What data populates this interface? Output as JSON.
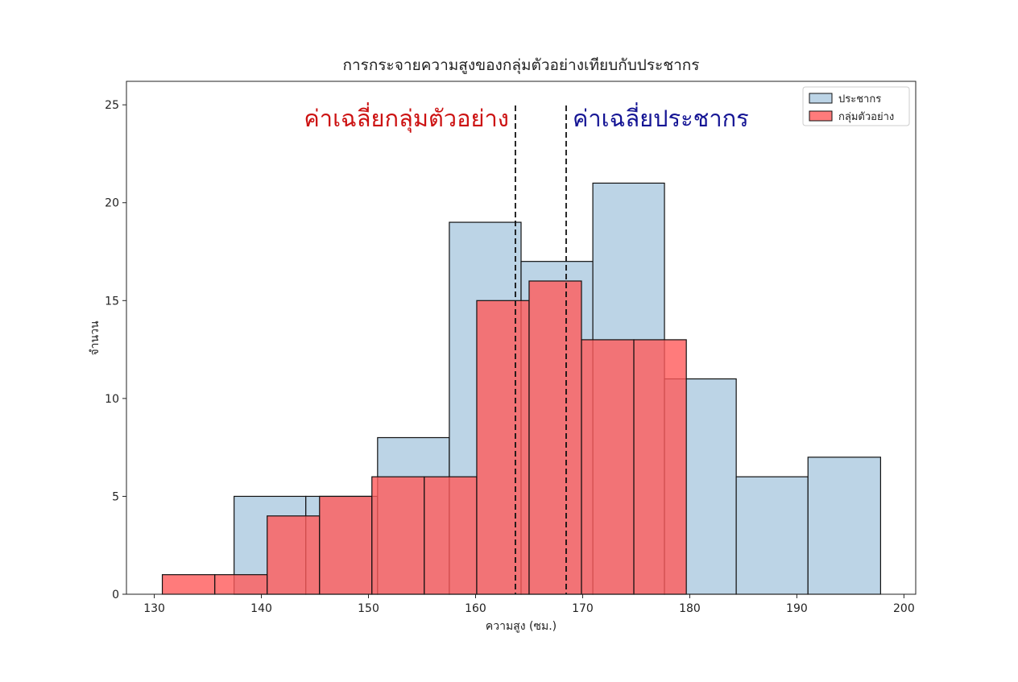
{
  "chart_data": {
    "type": "histogram",
    "title": "การกระจายความสูงของกลุ่มตัวอย่างเทียบกับประชากร",
    "xlabel": "ความสูง (ซม.)",
    "ylabel": "จำนวน",
    "xlim": [
      127.4,
      201.1
    ],
    "ylim": [
      0,
      26.2
    ],
    "xticks": [
      130,
      140,
      150,
      160,
      170,
      180,
      190,
      200
    ],
    "yticks": [
      0,
      5,
      10,
      15,
      20,
      25
    ],
    "legend": "upper right",
    "series": [
      {
        "name": "ประชากร",
        "color": "#bcd4e6",
        "bins": [
          137.45,
          144.15,
          150.85,
          157.55,
          164.25,
          170.95,
          177.64,
          184.34,
          191.04,
          197.82
        ],
        "values": [
          5,
          5,
          8,
          19,
          17,
          21,
          11,
          6,
          7
        ]
      },
      {
        "name": "กลุ่มตัวอย่าง",
        "color": "#ff5a5a",
        "bins": [
          130.75,
          135.65,
          140.54,
          145.43,
          150.32,
          155.21,
          160.11,
          165.0,
          169.89,
          174.78,
          179.68
        ],
        "values": [
          1,
          1,
          4,
          5,
          6,
          6,
          15,
          16,
          13,
          13
        ]
      }
    ],
    "mean_lines": [
      {
        "x": 163.72,
        "label": "ค่าเฉลี่ยกลุ่มตัวอย่าง",
        "color": "#cc1111"
      },
      {
        "x": 168.46,
        "label": "ค่าเฉลี่ยประชากร",
        "color": "#141494"
      }
    ]
  }
}
